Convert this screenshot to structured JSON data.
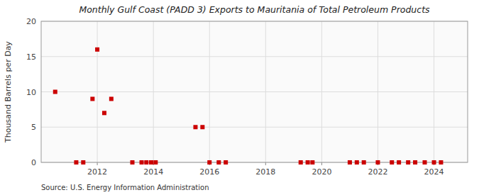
{
  "chart_data": {
    "type": "scatter",
    "title": "Monthly Gulf Coast (PADD 3) Exports to Mauritania of Total Petroleum Products",
    "y_label": "Thousand Barrels per Day",
    "source": "Source: U.S. Energy Information Administration",
    "color": "#cc0000",
    "marker": "square",
    "grid": true,
    "xlim": [
      2010.0,
      2025.2
    ],
    "ylim": [
      0,
      20
    ],
    "xticks": [
      2012,
      2014,
      2016,
      2018,
      2020,
      2022,
      2024
    ],
    "yticks": [
      0,
      5,
      10,
      15,
      20
    ],
    "x": [
      2010.5,
      2011.25,
      2011.5,
      2011.83,
      2012.0,
      2012.25,
      2012.5,
      2013.25,
      2013.58,
      2013.75,
      2013.92,
      2014.08,
      2015.5,
      2015.75,
      2016.0,
      2016.33,
      2016.58,
      2019.25,
      2019.5,
      2019.67,
      2021.0,
      2021.25,
      2021.5,
      2022.0,
      2022.5,
      2022.75,
      2023.08,
      2023.33,
      2023.67,
      2024.0,
      2024.25
    ],
    "values": [
      10.0,
      0.0,
      0.0,
      9.0,
      16.0,
      7.0,
      9.0,
      0.0,
      0.0,
      0.0,
      0.0,
      0.0,
      5.0,
      5.0,
      0.0,
      0.0,
      0.0,
      0.0,
      0.0,
      0.0,
      0.0,
      0.0,
      0.0,
      0.0,
      0.0,
      0.0,
      0.0,
      0.0,
      0.0,
      0.0,
      0.0
    ]
  }
}
